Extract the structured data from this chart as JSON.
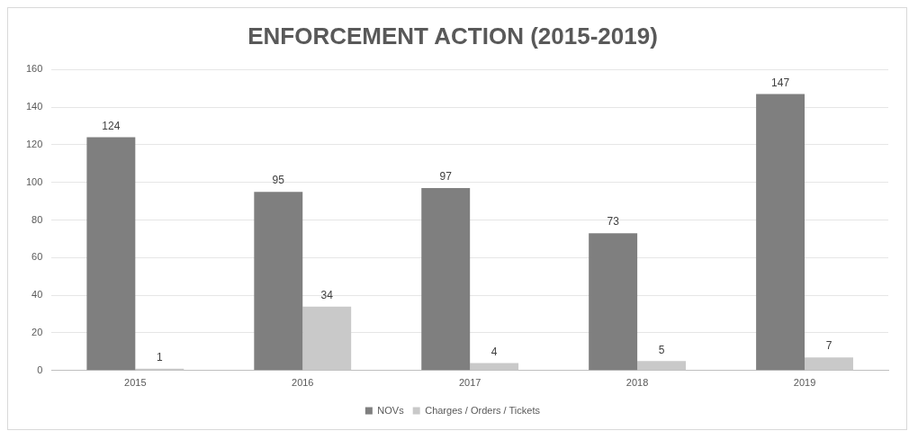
{
  "chart_data": {
    "type": "bar",
    "title": "ENFORCEMENT ACTION (2015-2019)",
    "categories": [
      "2015",
      "2016",
      "2017",
      "2018",
      "2019"
    ],
    "series": [
      {
        "name": "NOVs",
        "color": "#7f7f7f",
        "values": [
          124,
          95,
          97,
          73,
          147
        ]
      },
      {
        "name": "Charges / Orders / Tickets",
        "color": "#c9c9c9",
        "values": [
          1,
          34,
          4,
          5,
          7
        ]
      }
    ],
    "ylim": [
      0,
      160
    ],
    "yticks": [
      0,
      20,
      40,
      60,
      80,
      100,
      120,
      140,
      160
    ],
    "grid": "y",
    "legend": "bottom",
    "data_labels": true
  }
}
